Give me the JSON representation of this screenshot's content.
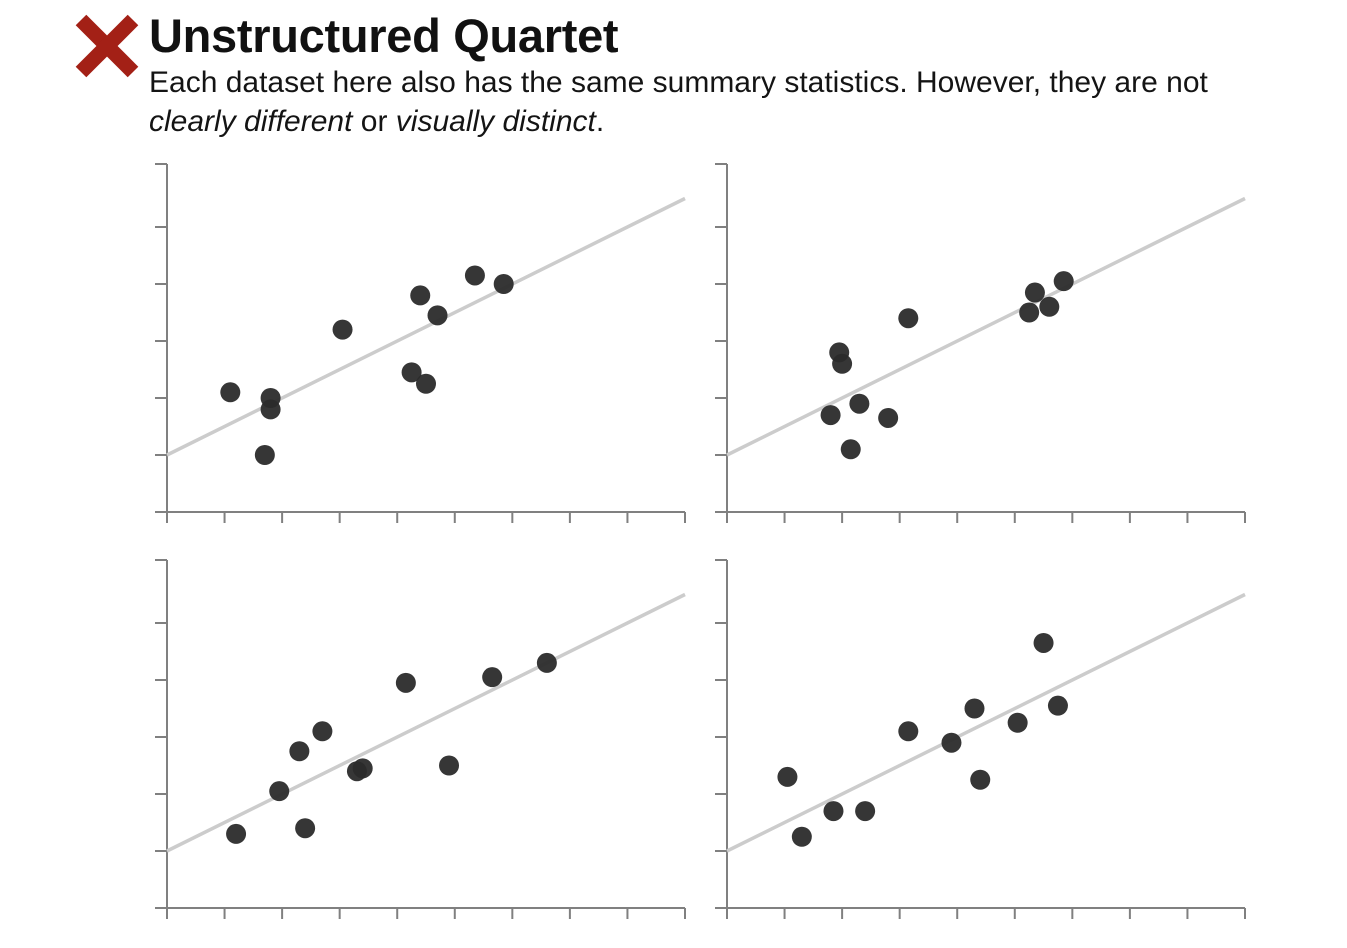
{
  "header": {
    "icon": "cross-icon",
    "icon_color": "#a32016",
    "title": "Unstructured Quartet",
    "subtitle": {
      "part1": "Each dataset here also has the same summary statistics. However, they are not ",
      "em1": "clearly different",
      "part2": " or ",
      "em2": "visually distinct",
      "part3": "."
    }
  },
  "colors": {
    "point": "#2b2b2b",
    "regression_line": "#cccccc",
    "axis": "#808080"
  },
  "chart_data": [
    {
      "type": "scatter",
      "xlim": [
        0,
        18
      ],
      "ylim": [
        0,
        12
      ],
      "x_ticks": 10,
      "y_ticks": 7,
      "tick_labels": false,
      "regression": {
        "intercept": 2,
        "slope": 0.5
      },
      "points": [
        {
          "x": 2.2,
          "y": 4.2
        },
        {
          "x": 3.4,
          "y": 2.0
        },
        {
          "x": 3.6,
          "y": 3.6
        },
        {
          "x": 3.6,
          "y": 4.0
        },
        {
          "x": 6.1,
          "y": 6.4
        },
        {
          "x": 8.5,
          "y": 4.9
        },
        {
          "x": 8.8,
          "y": 7.6
        },
        {
          "x": 9.0,
          "y": 4.5
        },
        {
          "x": 9.4,
          "y": 6.9
        },
        {
          "x": 10.7,
          "y": 8.3
        },
        {
          "x": 11.7,
          "y": 8.0
        }
      ]
    },
    {
      "type": "scatter",
      "xlim": [
        0,
        18
      ],
      "ylim": [
        0,
        12
      ],
      "x_ticks": 10,
      "y_ticks": 7,
      "tick_labels": false,
      "regression": {
        "intercept": 2,
        "slope": 0.5
      },
      "points": [
        {
          "x": 3.6,
          "y": 3.4
        },
        {
          "x": 3.9,
          "y": 5.6
        },
        {
          "x": 4.0,
          "y": 5.2
        },
        {
          "x": 4.3,
          "y": 2.2
        },
        {
          "x": 4.6,
          "y": 3.8
        },
        {
          "x": 5.6,
          "y": 3.3
        },
        {
          "x": 6.3,
          "y": 6.8
        },
        {
          "x": 10.5,
          "y": 7.0
        },
        {
          "x": 10.7,
          "y": 7.7
        },
        {
          "x": 11.2,
          "y": 7.2
        },
        {
          "x": 11.7,
          "y": 8.1
        }
      ]
    },
    {
      "type": "scatter",
      "xlim": [
        0,
        18
      ],
      "ylim": [
        0,
        12
      ],
      "x_ticks": 10,
      "y_ticks": 7,
      "tick_labels": false,
      "regression": {
        "intercept": 2,
        "slope": 0.5
      },
      "points": [
        {
          "x": 2.4,
          "y": 2.6
        },
        {
          "x": 3.9,
          "y": 4.1
        },
        {
          "x": 4.6,
          "y": 5.5
        },
        {
          "x": 4.8,
          "y": 2.8
        },
        {
          "x": 5.4,
          "y": 6.2
        },
        {
          "x": 6.6,
          "y": 4.8
        },
        {
          "x": 6.8,
          "y": 4.9
        },
        {
          "x": 8.3,
          "y": 7.9
        },
        {
          "x": 9.8,
          "y": 5.0
        },
        {
          "x": 11.3,
          "y": 8.1
        },
        {
          "x": 13.2,
          "y": 8.6
        }
      ]
    },
    {
      "type": "scatter",
      "xlim": [
        0,
        18
      ],
      "ylim": [
        0,
        12
      ],
      "x_ticks": 10,
      "y_ticks": 7,
      "tick_labels": false,
      "regression": {
        "intercept": 2,
        "slope": 0.5
      },
      "points": [
        {
          "x": 2.1,
          "y": 4.6
        },
        {
          "x": 2.6,
          "y": 2.5
        },
        {
          "x": 3.7,
          "y": 3.4
        },
        {
          "x": 4.8,
          "y": 3.4
        },
        {
          "x": 6.3,
          "y": 6.2
        },
        {
          "x": 7.8,
          "y": 5.8
        },
        {
          "x": 8.6,
          "y": 7.0
        },
        {
          "x": 8.8,
          "y": 4.5
        },
        {
          "x": 10.1,
          "y": 6.5
        },
        {
          "x": 11.0,
          "y": 9.3
        },
        {
          "x": 11.5,
          "y": 7.1
        }
      ]
    }
  ]
}
